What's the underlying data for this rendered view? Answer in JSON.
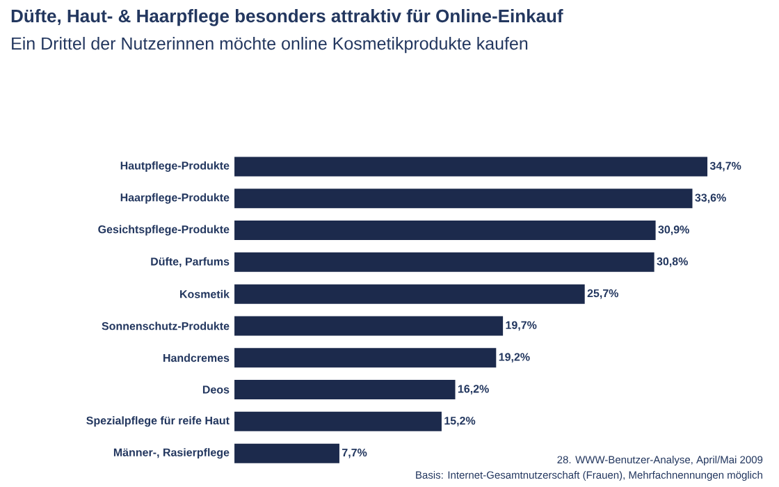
{
  "chart_data": {
    "type": "bar",
    "orientation": "horizontal",
    "title": "Düfte, Haut- & Haarpflege besonders attraktiv für Online-Einkauf",
    "subtitle": "Ein Drittel der Nutzerinnen möchte online Kosmetikprodukte kaufen",
    "categories": [
      "Hautpflege-Produkte",
      "Haarpflege-Produkte",
      "Gesichtspflege-Produkte",
      "Düfte, Parfums",
      "Kosmetik",
      "Sonnenschutz-Produkte",
      "Handcremes",
      "Deos",
      "Spezialpflege für reife Haut",
      "Männer-, Rasierpflege"
    ],
    "values": [
      34.7,
      33.6,
      30.9,
      30.8,
      25.7,
      19.7,
      19.2,
      16.2,
      15.2,
      7.7
    ],
    "value_labels": [
      "34,7%",
      "33,6%",
      "30,9%",
      "30,8%",
      "25,7%",
      "19,7%",
      "19,2%",
      "16,2%",
      "15,2%",
      "7,7%"
    ],
    "color": "#1c2a4c",
    "annotations": [
      "28. WWW-Benutzer-Analyse, April/Mai 2009",
      "Basis: Internet-Gesamtnutzerschaft (Frauen), Mehrfachnennungen möglich"
    ]
  }
}
